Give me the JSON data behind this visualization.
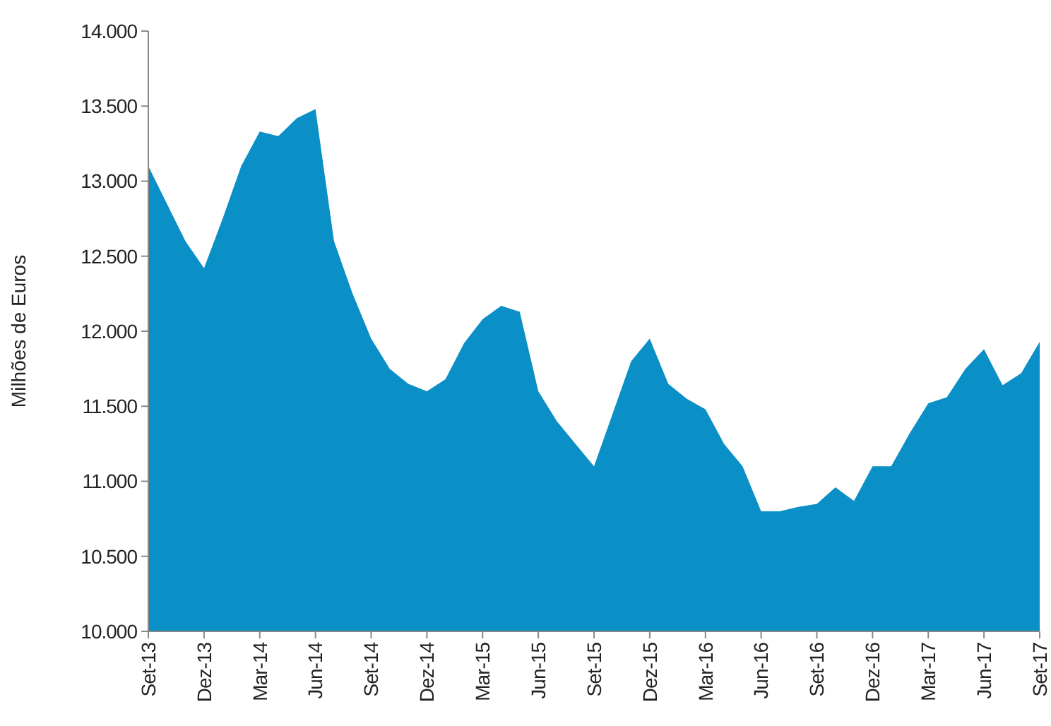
{
  "chart_data": {
    "type": "area",
    "ylabel": "Milhões de Euros",
    "categories": [
      "Set-13",
      null,
      null,
      "Dez-13",
      null,
      null,
      "Mar-14",
      null,
      null,
      "Jun-14",
      null,
      null,
      "Set-14",
      null,
      null,
      "Dez-14",
      null,
      null,
      "Mar-15",
      null,
      null,
      "Jun-15",
      null,
      null,
      "Set-15",
      null,
      null,
      "Dez-15",
      null,
      null,
      "Mar-16",
      null,
      null,
      "Jun-16",
      null,
      null,
      "Set-16",
      null,
      null,
      "Dez-16",
      null,
      null,
      "Mar-17",
      null,
      null,
      "Jun-17",
      null,
      null,
      "Set-17"
    ],
    "series": [
      {
        "color": "#0a8fc7",
        "values": [
          13100,
          12850,
          12600,
          12420,
          12750,
          13100,
          13330,
          13300,
          13420,
          13480,
          12600,
          12250,
          11950,
          11750,
          11650,
          11600,
          11680,
          11920,
          12080,
          12170,
          12130,
          11600,
          11400,
          11250,
          11100,
          11450,
          11800,
          11950,
          11650,
          11550,
          11480,
          11250,
          11100,
          10800,
          10800,
          10830,
          10850,
          10960,
          10870,
          11100,
          11100,
          11320,
          11520,
          11560,
          11750,
          11880,
          11640,
          11720,
          11930
        ]
      }
    ],
    "ylim": [
      10000,
      14000
    ],
    "yticks": [
      {
        "value": 10000,
        "label": "10.000"
      },
      {
        "value": 10500,
        "label": "10.500"
      },
      {
        "value": 11000,
        "label": "11.000"
      },
      {
        "value": 11500,
        "label": "11.500"
      },
      {
        "value": 12000,
        "label": "12.000"
      },
      {
        "value": 12500,
        "label": "12.500"
      },
      {
        "value": 13000,
        "label": "13.000"
      },
      {
        "value": 13500,
        "label": "13.500"
      },
      {
        "value": 14000,
        "label": "14.000"
      }
    ],
    "grid": false
  }
}
